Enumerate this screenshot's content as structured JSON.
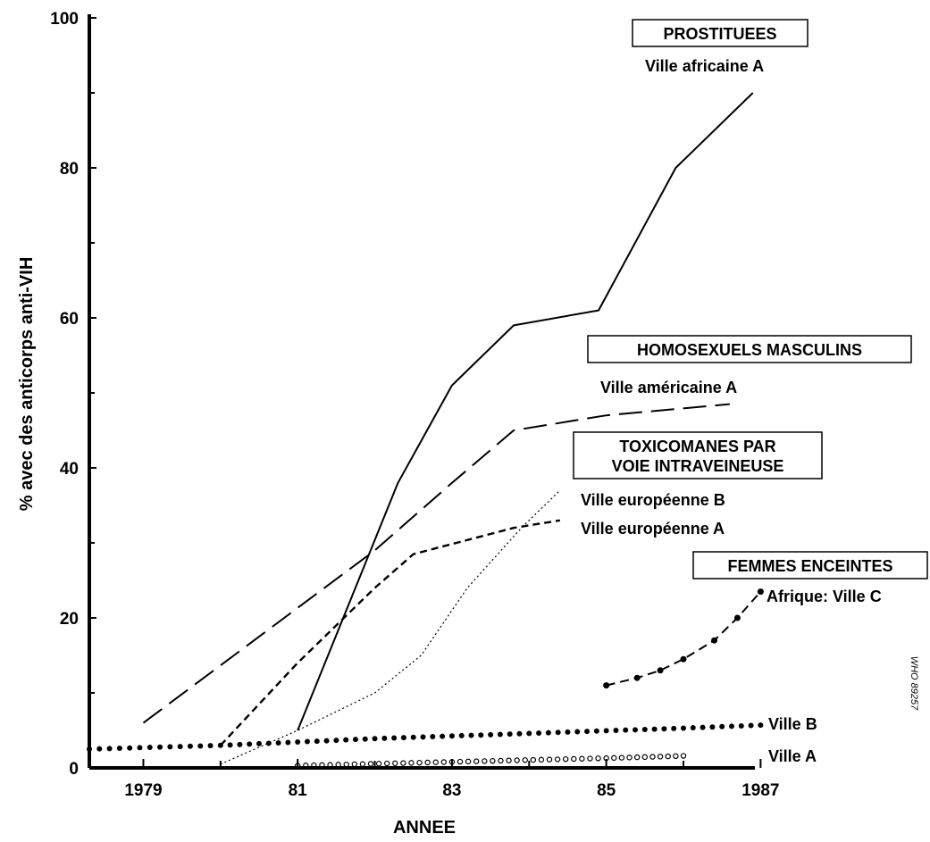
{
  "chart_data": {
    "type": "line",
    "title": "",
    "xlabel": "ANNEE",
    "ylabel": "% avec des anticorps anti-VIH",
    "xlim": [
      1978.3,
      1987.1
    ],
    "ylim": [
      0,
      100
    ],
    "xticks": [
      1979,
      1981,
      1983,
      1985,
      1987
    ],
    "xtick_labels": [
      "1979",
      "81",
      "83",
      "85",
      "1987"
    ],
    "yticks": [
      0,
      20,
      40,
      60,
      80,
      100
    ],
    "ytick_labels": [
      "0",
      "20",
      "40",
      "60",
      "80",
      "100"
    ],
    "grid": false,
    "groups": [
      {
        "key": "prostitutes",
        "label_lines": [
          "PROSTITUEES"
        ]
      },
      {
        "key": "homosexuals",
        "label_lines": [
          "HOMOSEXUELS MASCULINS"
        ]
      },
      {
        "key": "ivdu",
        "label_lines": [
          "TOXICOMANES PAR",
          "VOIE INTRAVEINEUSE"
        ]
      },
      {
        "key": "pregnant",
        "label_lines": [
          "FEMMES ENCEINTES"
        ]
      }
    ],
    "series": [
      {
        "name": "Ville africaine A",
        "group": "prostitutes",
        "style": "solid",
        "points": [
          [
            1981.0,
            5
          ],
          [
            1982.3,
            38
          ],
          [
            1983.0,
            51
          ],
          [
            1983.8,
            59
          ],
          [
            1984.9,
            61
          ],
          [
            1985.9,
            80
          ],
          [
            1986.9,
            90
          ]
        ]
      },
      {
        "name": "Ville américaine A",
        "group": "homosexuals",
        "style": "longdash",
        "points": [
          [
            1979.0,
            6
          ],
          [
            1982.0,
            29
          ],
          [
            1983.0,
            38
          ],
          [
            1983.8,
            45
          ],
          [
            1985.0,
            47
          ],
          [
            1986.6,
            48.5
          ]
        ]
      },
      {
        "name": "Ville européenne B",
        "group": "ivdu",
        "style": "dotted",
        "points": [
          [
            1980.0,
            0.5
          ],
          [
            1981.0,
            5
          ],
          [
            1982.0,
            10
          ],
          [
            1982.6,
            15
          ],
          [
            1983.2,
            24
          ],
          [
            1983.9,
            32
          ],
          [
            1984.4,
            37
          ]
        ]
      },
      {
        "name": "Ville européenne A",
        "group": "ivdu",
        "style": "shortdash",
        "points": [
          [
            1980.0,
            3
          ],
          [
            1981.0,
            14
          ],
          [
            1982.0,
            24
          ],
          [
            1982.5,
            28.5
          ],
          [
            1983.8,
            32
          ],
          [
            1984.4,
            33
          ]
        ]
      },
      {
        "name": "Afrique: Ville C",
        "group": "pregnant",
        "style": "dash-dot-marker",
        "points": [
          [
            1985.0,
            11
          ],
          [
            1985.4,
            12
          ],
          [
            1985.7,
            13
          ],
          [
            1986.0,
            14.5
          ],
          [
            1986.4,
            17
          ],
          [
            1986.7,
            20
          ],
          [
            1987.0,
            23.5
          ]
        ]
      },
      {
        "name": "Ville B",
        "group": "",
        "style": "bigdots",
        "points": [
          [
            1978.3,
            2.5
          ],
          [
            1980.0,
            3
          ],
          [
            1982.0,
            3.9
          ],
          [
            1984.0,
            4.6
          ],
          [
            1986.0,
            5.3
          ],
          [
            1987.0,
            5.7
          ]
        ]
      },
      {
        "name": "Ville A",
        "group": "",
        "style": "circles",
        "points": [
          [
            1981.0,
            0.3
          ],
          [
            1983.0,
            0.8
          ],
          [
            1985.0,
            1.3
          ],
          [
            1986.0,
            1.6
          ]
        ]
      }
    ],
    "watermark": "WHO 89257"
  }
}
